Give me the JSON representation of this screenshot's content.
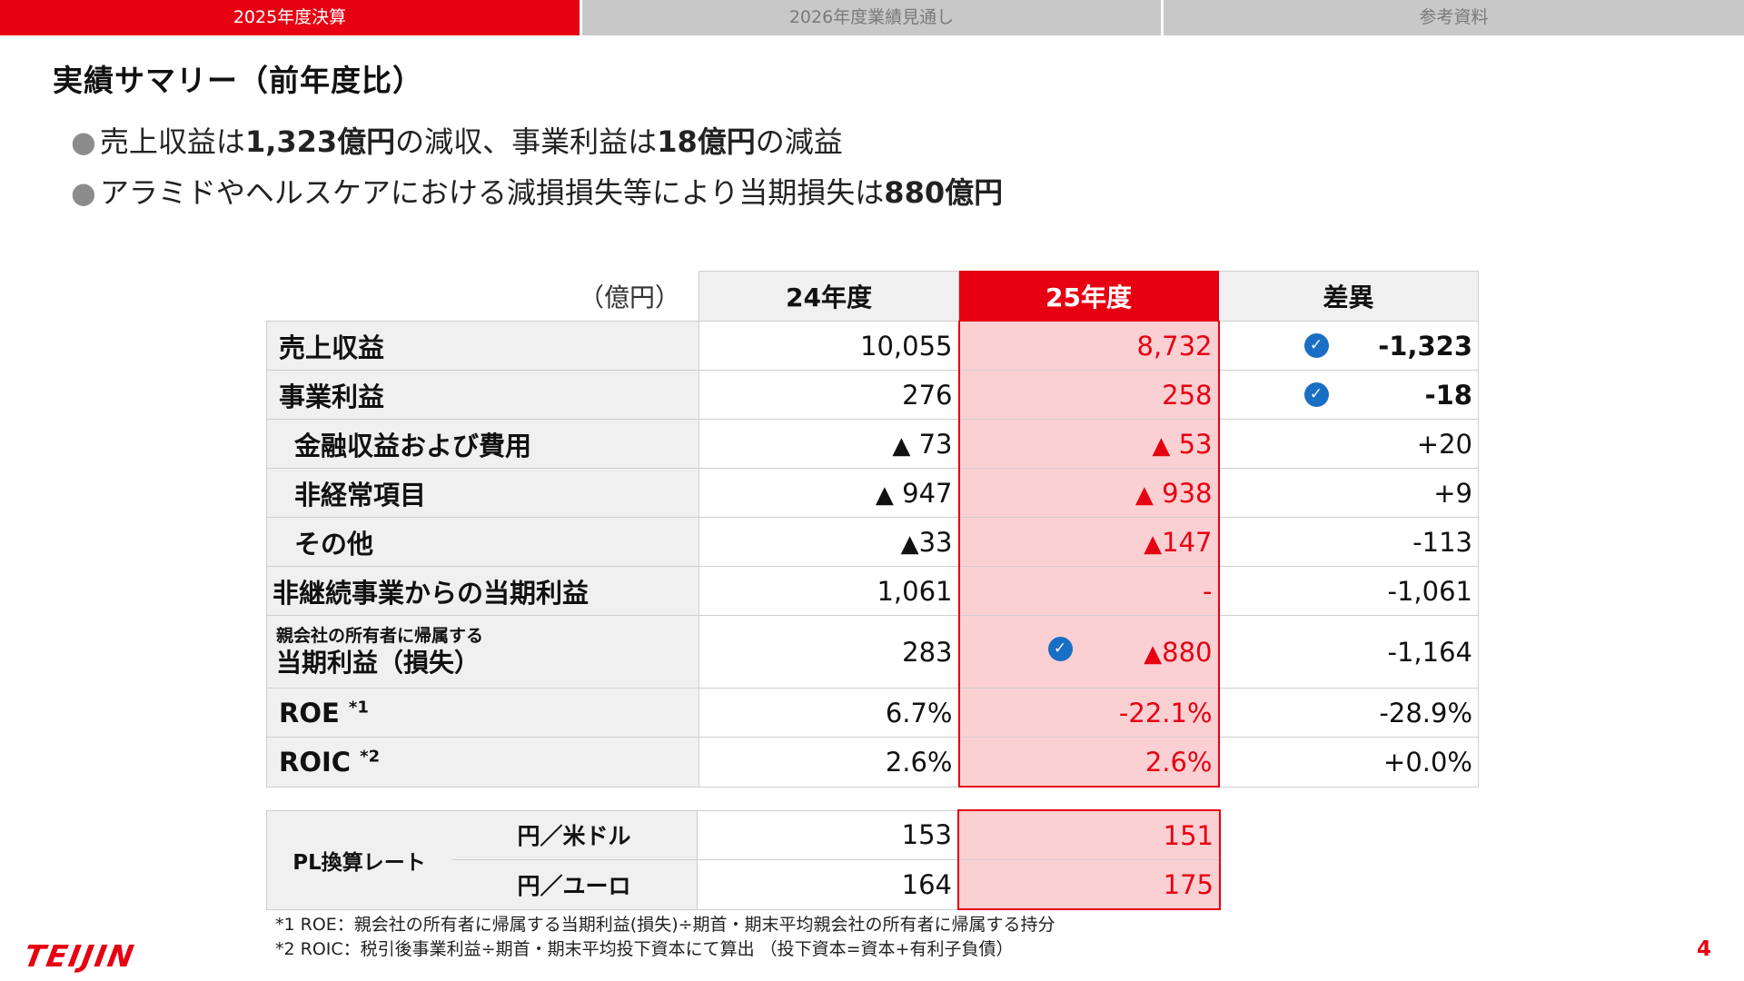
{
  "tabs": [
    "2025年度決算",
    "2026年度業績見通し",
    "参考資料"
  ],
  "title": "実績サマリー（前年度比）",
  "bullets": [
    {
      "pre": "売上収益は",
      "b1": "1,323億円",
      "mid": "の減収、事業利益は",
      "b2": "18億円",
      "post": "の減益"
    },
    {
      "pre": "アラミドやヘルスケアにおける減損損失等により当期損失は",
      "b1": "880億円"
    }
  ],
  "table": {
    "unit": "（億円）",
    "headers": [
      "24年度",
      "25年度",
      "差異"
    ],
    "rows": [
      {
        "label": "売上収益",
        "fy24": "10,055",
        "fy25": "8,732",
        "diff": "-1,323"
      },
      {
        "label": "事業利益",
        "fy24": "276",
        "fy25": "258",
        "diff": "-18"
      },
      {
        "label": "金融収益および費用",
        "fy24": "73",
        "fy25": "53",
        "diff": "+20"
      },
      {
        "label": "非経常項目",
        "fy24": "947",
        "fy25": "938",
        "diff": "+9"
      },
      {
        "label": "その他",
        "fy24": "33",
        "fy25": "147",
        "diff": "-113"
      },
      {
        "label": "非継続事業からの当期利益",
        "fy24": "1,061",
        "fy25": "-",
        "diff": "-1,061"
      },
      {
        "label_small": "親会社の所有者に帰属する",
        "label": "当期利益（損失）",
        "fy24": "283",
        "fy25": "880",
        "diff": "-1,164"
      },
      {
        "label": "ROE",
        "sup": "*1",
        "fy24": "6.7%",
        "fy25": "-22.1%",
        "diff": "-28.9%"
      },
      {
        "label": "ROIC",
        "sup": "*2",
        "fy24": "2.6%",
        "fy25": "2.6%",
        "diff": "+0.0%"
      }
    ]
  },
  "fx": {
    "label": "PL換算レート",
    "rows": [
      {
        "pair": "円／米ドル",
        "fy24": "153",
        "fy25": "151"
      },
      {
        "pair": "円／ユーロ",
        "fy24": "164",
        "fy25": "175"
      }
    ]
  },
  "notes": [
    "*1 ROE：親会社の所有者に帰属する当期利益(損失)÷期首・期末平均親会社の所有者に帰属する持分",
    "*2 ROIC：税引後事業利益÷期首・期末平均投下資本にて算出 （投下資本=資本+有利子負債）"
  ],
  "logo": "TEIJIN",
  "page_number": "4",
  "colors": {
    "accent": "#e60012",
    "highlight": "#fbd0d3",
    "check": "#1a6fc4"
  },
  "icons": {
    "triangle": "▲",
    "check": "✓"
  }
}
